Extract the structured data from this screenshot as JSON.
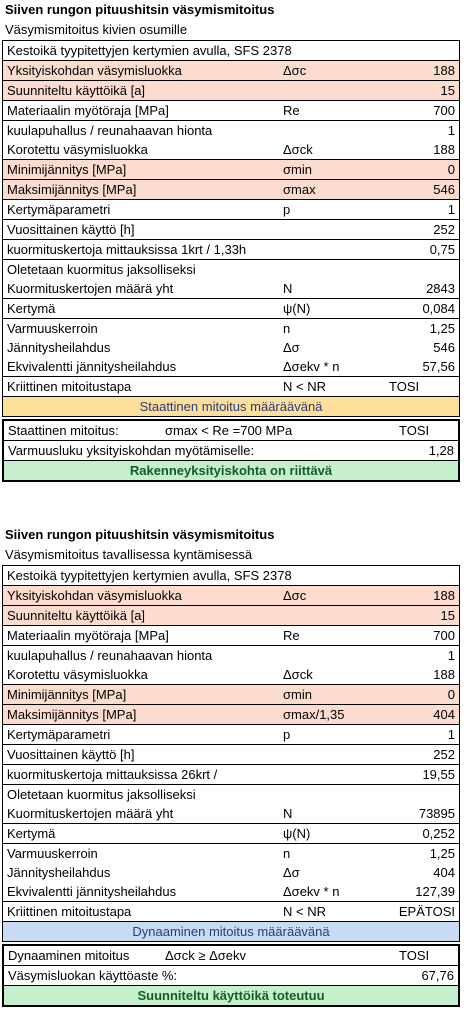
{
  "section1": {
    "title": "Siiven rungon pituushitsin väsymismitoitus",
    "subtitle": "Väsymismitoitus kivien osumille",
    "rows": [
      {
        "label": "Kestoikä tyypitettyjen kertymien avulla, SFS 2378",
        "sym": "",
        "val": ""
      },
      {
        "label": "Yksityiskohdan väsymisluokka",
        "sym": "Δσc",
        "val": "188"
      },
      {
        "label": "Suunniteltu käyttöikä [a]",
        "sym": "",
        "val": "15"
      },
      {
        "label": "Materiaalin myötöraja [MPa]",
        "sym": "Re",
        "val": "700"
      },
      {
        "label": "kuulapuhallus / reunahaavan hionta",
        "sym": "",
        "val": "1"
      },
      {
        "label": "Korotettu väsymisluokka",
        "sym": "Δσck",
        "val": "188"
      },
      {
        "label": "Minimijännitys [MPa]",
        "sym": "σmin",
        "val": "0"
      },
      {
        "label": "Maksimijännitys [MPa]",
        "sym": "σmax",
        "val": "546"
      },
      {
        "label": "Kertymäparametri",
        "sym": "p",
        "val": "1"
      },
      {
        "label": "Vuosittainen käyttö [h]",
        "sym": "",
        "val": "252"
      },
      {
        "label": "kuormituskertoja mittauksissa 1krt / 1,33h",
        "sym": "",
        "val": "0,75"
      },
      {
        "label": "Oletetaan kuormitus jaksolliseksi",
        "sym": "",
        "val": ""
      },
      {
        "label": "Kuormituskertojen määrä yht",
        "sym": "N",
        "val": "2843"
      },
      {
        "label": "Kertymä",
        "sym": "ψ(N)",
        "val": "0,084"
      },
      {
        "label": "Varmuuskerroin",
        "sym": "n",
        "val": "1,25"
      },
      {
        "label": "Jännitysheilahdus",
        "sym": "Δσ",
        "val": "546"
      },
      {
        "label": "Ekvivalentti jännitysheilahdus",
        "sym": "Δσekv * n",
        "val": "57,56"
      },
      {
        "label": "Kriittinen mitoitustapa",
        "sym": "N < NR",
        "val": "TOSI"
      }
    ],
    "banner": "Staattinen mitoitus määräävänä",
    "result": [
      {
        "label": "Staattinen mitoitus:",
        "mid": "σmax < Re =700 MPa",
        "val": "TOSI"
      },
      {
        "label": "Varmuusluku yksityiskohdan myötämiselle:",
        "mid": "",
        "val": "1,28"
      }
    ],
    "verdict": "Rakenneyksityiskohta on riittävä"
  },
  "section2": {
    "title": "Siiven rungon pituushitsin väsymismitoitus",
    "subtitle": "Väsymismitoitus tavallisessa kyntämisessä",
    "rows": [
      {
        "label": "Kestoikä tyypitettyjen kertymien avulla, SFS 2378",
        "sym": "",
        "val": ""
      },
      {
        "label": "Yksityiskohdan väsymisluokka",
        "sym": "Δσc",
        "val": "188"
      },
      {
        "label": "Suunniteltu käyttöikä [a]",
        "sym": "",
        "val": "15"
      },
      {
        "label": "Materiaalin myötöraja [MPa]",
        "sym": "Re",
        "val": "700"
      },
      {
        "label": "kuulapuhallus / reunahaavan hionta",
        "sym": "",
        "val": "1"
      },
      {
        "label": "Korotettu väsymisluokka",
        "sym": "Δσck",
        "val": "188"
      },
      {
        "label": "Minimijännitys [MPa]",
        "sym": "σmin",
        "val": "0"
      },
      {
        "label": "Maksimijännitys [MPa]",
        "sym": "σmax/1,35",
        "val": "404"
      },
      {
        "label": "Kertymäparametri",
        "sym": "p",
        "val": "1"
      },
      {
        "label": "Vuosittainen käyttö [h]",
        "sym": "",
        "val": "252"
      },
      {
        "label": "kuormituskertoja mittauksissa 26krt /",
        "sym": "",
        "val": "19,55"
      },
      {
        "label": "Oletetaan kuormitus jaksolliseksi",
        "sym": "",
        "val": ""
      },
      {
        "label": "Kuormituskertojen määrä yht",
        "sym": "N",
        "val": "73895"
      },
      {
        "label": "Kertymä",
        "sym": "ψ(N)",
        "val": "0,252"
      },
      {
        "label": "Varmuuskerroin",
        "sym": "n",
        "val": "1,25"
      },
      {
        "label": "Jännitysheilahdus",
        "sym": "Δσ",
        "val": "404"
      },
      {
        "label": "Ekvivalentti jännitysheilahdus",
        "sym": "Δσekv * n",
        "val": "127,39"
      },
      {
        "label": "Kriittinen mitoitustapa",
        "sym": "N < NR",
        "val": "EPÄTOSI"
      }
    ],
    "banner": "Dynaaminen mitoitus määräävänä",
    "result": [
      {
        "label": "Dynaaminen mitoitus",
        "mid": "Δσck ≥ Δσekv",
        "val": "TOSI"
      },
      {
        "label": "Väsymisluokan käyttöaste %:",
        "mid": "",
        "val": "67,76"
      }
    ],
    "verdict": "Suunniteltu käyttöikä toteutuu"
  },
  "colors": {
    "pink": "#fbdccf",
    "yellow": "#fdde9a",
    "blue": "#c9dbf0",
    "green": "#c6efcd",
    "green_text": "#145e23",
    "banner_text": "#2a3b7a"
  }
}
